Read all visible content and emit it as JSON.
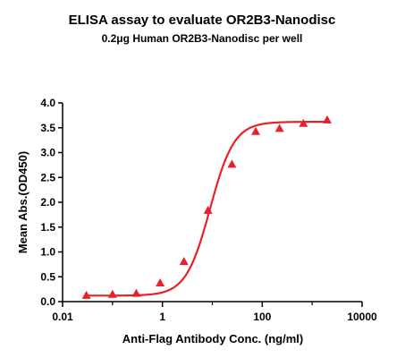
{
  "chart_data": {
    "type": "scatter",
    "title": "ELISA assay to evaluate OR2B3-Nanodisc",
    "subtitle": "0.2μg Human OR2B3-Nanodisc per well",
    "xlabel": "Anti-Flag Antibody Conc. (ng/ml)",
    "ylabel": "Mean Abs.(OD450)",
    "x_scale": "log",
    "xlim": [
      0.01,
      10000
    ],
    "ylim": [
      0,
      4.0
    ],
    "x_ticks": [
      0.01,
      1,
      100,
      10000
    ],
    "x_tick_labels": [
      "0.01",
      "1",
      "100",
      "10000"
    ],
    "y_ticks": [
      0.0,
      0.5,
      1.0,
      1.5,
      2.0,
      2.5,
      3.0,
      3.5,
      4.0
    ],
    "y_tick_labels": [
      "0.0",
      "0.5",
      "1.0",
      "1.5",
      "2.0",
      "2.5",
      "3.0",
      "3.5",
      "4.0"
    ],
    "grid": false,
    "color": "#e8202a",
    "marker": "triangle",
    "series": [
      {
        "x": [
          0.03,
          0.1,
          0.3,
          0.9,
          2.7,
          8.2,
          24.7,
          74,
          222,
          667,
          2000
        ],
        "y": [
          0.12,
          0.14,
          0.16,
          0.37,
          0.8,
          1.83,
          2.76,
          3.42,
          3.48,
          3.58,
          3.65
        ]
      }
    ],
    "fit_curve": {
      "type": "4PL",
      "bottom": 0.12,
      "top": 3.62,
      "ec50": 9.0,
      "hill": 1.8
    }
  }
}
